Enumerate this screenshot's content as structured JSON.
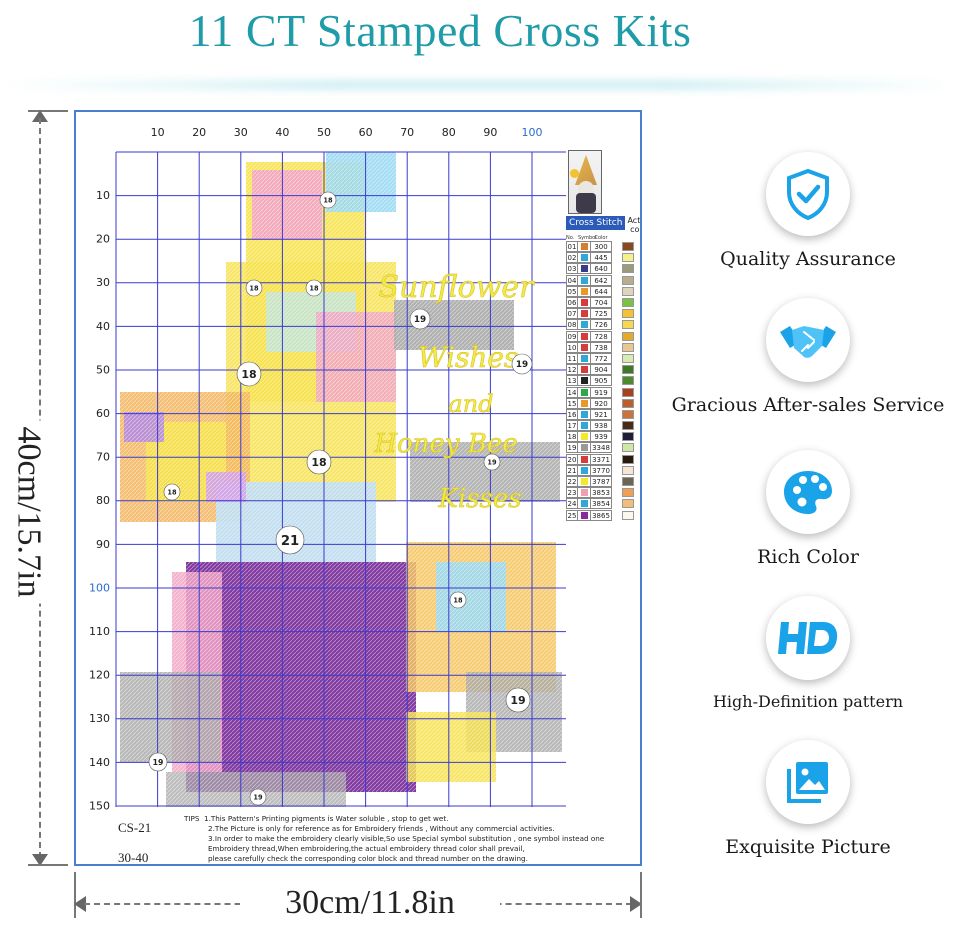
{
  "header": {
    "title": "11 CT Stamped Cross Kits"
  },
  "dimensions": {
    "height_label": "40cm/15.7in",
    "width_label": "30cm/11.8in"
  },
  "pattern": {
    "x_ticks": [
      "10",
      "20",
      "30",
      "40",
      "50",
      "60",
      "70",
      "80",
      "90",
      "100"
    ],
    "y_ticks": [
      "10",
      "20",
      "30",
      "40",
      "50",
      "60",
      "70",
      "80",
      "90",
      "100",
      "110",
      "120",
      "130",
      "140",
      "150"
    ],
    "code": "CS-21",
    "size": "30-40",
    "region_numbers": [
      "18",
      "18",
      "18",
      "18",
      "18",
      "18",
      "18",
      "21",
      "19",
      "19",
      "19",
      "19",
      "19",
      "19"
    ],
    "text_art": [
      "Sunflower",
      "Wishes",
      "and",
      "Honey Bee",
      "Kisses"
    ]
  },
  "legend": {
    "title": "Cross Stitch",
    "actual_label": "Actual color",
    "columns": [
      "No.",
      "Symbol",
      "Color"
    ],
    "rows": [
      {
        "no": "01",
        "code": "300",
        "sym": "#d4812e",
        "color": "#8a4a1e"
      },
      {
        "no": "02",
        "code": "445",
        "sym": "#2fa7d8",
        "color": "#f4f08a"
      },
      {
        "no": "03",
        "code": "640",
        "sym": "#3a3a8a",
        "color": "#9a9a7c"
      },
      {
        "no": "04",
        "code": "642",
        "sym": "#2fa7d8",
        "color": "#b8ae8e"
      },
      {
        "no": "05",
        "code": "644",
        "sym": "#e79a2a",
        "color": "#ddd6bc"
      },
      {
        "no": "06",
        "code": "704",
        "sym": "#d63c3c",
        "color": "#7cc242"
      },
      {
        "no": "07",
        "code": "725",
        "sym": "#d63c3c",
        "color": "#f4c232"
      },
      {
        "no": "08",
        "code": "726",
        "sym": "#2fa7d8",
        "color": "#f6d850"
      },
      {
        "no": "09",
        "code": "728",
        "sym": "#d63c3c",
        "color": "#e6aa2a"
      },
      {
        "no": "10",
        "code": "738",
        "sym": "#d63c3c",
        "color": "#e8c890"
      },
      {
        "no": "11",
        "code": "772",
        "sym": "#2fa7d8",
        "color": "#d8ecb2"
      },
      {
        "no": "12",
        "code": "904",
        "sym": "#d63c3c",
        "color": "#3e7a24"
      },
      {
        "no": "13",
        "code": "905",
        "sym": "#222222",
        "color": "#4d8c2a"
      },
      {
        "no": "14",
        "code": "919",
        "sym": "#2aa84a",
        "color": "#a8421e"
      },
      {
        "no": "15",
        "code": "920",
        "sym": "#e79a2a",
        "color": "#b8602e"
      },
      {
        "no": "16",
        "code": "921",
        "sym": "#2fa7d8",
        "color": "#c8743a"
      },
      {
        "no": "17",
        "code": "938",
        "sym": "#2fa7d8",
        "color": "#4a2c16"
      },
      {
        "no": "18",
        "code": "939",
        "sym": "#f3e82a",
        "color": "#1e1e36"
      },
      {
        "no": "19",
        "code": "3348",
        "sym": "#999999",
        "color": "#cce8a2"
      },
      {
        "no": "20",
        "code": "3371",
        "sym": "#d63c3c",
        "color": "#2a1a0c"
      },
      {
        "no": "21",
        "code": "3770",
        "sym": "#2fa7d8",
        "color": "#f6e6d2"
      },
      {
        "no": "22",
        "code": "3787",
        "sym": "#f3e82a",
        "color": "#6c6454"
      },
      {
        "no": "23",
        "code": "3853",
        "sym": "#f0a0b0",
        "color": "#f0a054"
      },
      {
        "no": "24",
        "code": "3854",
        "sym": "#2fa7d8",
        "color": "#f4bc7a"
      },
      {
        "no": "25",
        "code": "3865",
        "sym": "#8a2a9a",
        "color": "#fbf8ee"
      }
    ]
  },
  "tips": {
    "heading": "TIPS",
    "lines": [
      "1.This Pattern's Printing pigments is Water soluble , stop to get wet.",
      "2.The Picture is only for reference as for Embroidery friends , Without any commercial activities.",
      "3.In order to make the embroidery clearly visible,So use Special symbol substitution , one symbol instead one",
      "Embroidery thread,When embroidering,the actual embroidery thread color shall prevail,",
      "please carefully check the corresponding color block and thread number on the drawing."
    ]
  },
  "features": [
    {
      "label": "Quality Assurance",
      "icon": "shield-check-icon"
    },
    {
      "label": "Gracious After-sales Service",
      "icon": "handshake-icon"
    },
    {
      "label": "Rich Color",
      "icon": "palette-icon"
    },
    {
      "label": "High-Definition pattern",
      "icon": "hd-icon"
    },
    {
      "label": "Exquisite Picture",
      "icon": "picture-icon"
    }
  ],
  "colors": {
    "accent": "#1f9ca8",
    "icon_blue": "#1aa3e8",
    "grid": "#3a3ad0",
    "frame": "#4a7fd0"
  }
}
